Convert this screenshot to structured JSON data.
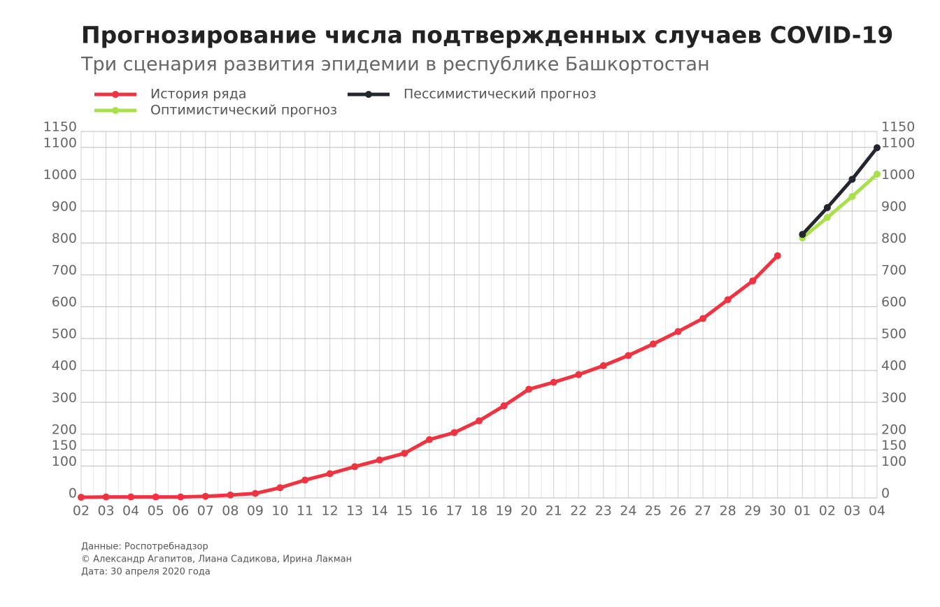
{
  "chart_data": {
    "type": "line",
    "title": "Прогнозирование числа подтвержденных случаев COVID-19",
    "subtitle": "Три сценария развития эпидемии в республике Башкортостан",
    "categories": [
      "02",
      "03",
      "04",
      "05",
      "06",
      "07",
      "08",
      "09",
      "10",
      "11",
      "12",
      "13",
      "14",
      "15",
      "16",
      "17",
      "18",
      "19",
      "20",
      "21",
      "22",
      "23",
      "24",
      "25",
      "26",
      "27",
      "28",
      "29",
      "30",
      "01",
      "02",
      "03",
      "04"
    ],
    "series": [
      {
        "name": "История ряда",
        "color": "#ef3340",
        "values": [
          2,
          3,
          3,
          3,
          3,
          5,
          9,
          14,
          32,
          56,
          76,
          98,
          119,
          140,
          183,
          205,
          242,
          289,
          341,
          363,
          387,
          415,
          447,
          483,
          522,
          563,
          622,
          681,
          760,
          null,
          null,
          null,
          null
        ]
      },
      {
        "name": "Оптимистический прогноз",
        "color": "#a8e04a",
        "values": [
          null,
          null,
          null,
          null,
          null,
          null,
          null,
          null,
          null,
          null,
          null,
          null,
          null,
          null,
          null,
          null,
          null,
          null,
          null,
          null,
          null,
          null,
          null,
          null,
          null,
          null,
          null,
          null,
          null,
          816,
          880,
          946,
          1016
        ]
      },
      {
        "name": "Пессимистический прогноз",
        "color": "#23262e",
        "values": [
          null,
          null,
          null,
          null,
          null,
          null,
          null,
          null,
          null,
          null,
          null,
          null,
          null,
          null,
          null,
          null,
          null,
          null,
          null,
          null,
          null,
          null,
          null,
          null,
          null,
          null,
          null,
          null,
          null,
          827,
          911,
          1000,
          1099
        ]
      }
    ],
    "ylim": [
      0,
      1150
    ],
    "yticks": [
      0,
      100,
      150,
      200,
      300,
      400,
      500,
      600,
      700,
      800,
      900,
      1000,
      1100,
      1150
    ],
    "grid": true,
    "notes": [
      "Данные: Роспотребнадзор",
      "© Александр Агапитов, Лиана Садикова, Ирина Лакман",
      "Дата: 30 апреля 2020 года"
    ]
  }
}
